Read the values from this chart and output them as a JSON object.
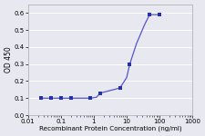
{
  "x": [
    0.025,
    0.05,
    0.1,
    0.2,
    0.8,
    1.6,
    6.25,
    12.5,
    50,
    100
  ],
  "y": [
    0.1,
    0.1,
    0.1,
    0.1,
    0.1,
    0.13,
    0.16,
    0.3,
    0.59,
    0.59
  ],
  "line_color": "#5555cc",
  "marker_color": "#2233aa",
  "xlabel": "Recombinant Protein Concentration (ng/ml)",
  "ylabel": "OD 450",
  "ylim": [
    0,
    0.65
  ],
  "yticks": [
    0,
    0.1,
    0.2,
    0.3,
    0.4,
    0.5,
    0.6
  ],
  "background_color": "#e8e8f0",
  "plot_bg": "#e8e8f0",
  "grid_color": "#ffffff",
  "xlabel_fontsize": 5.2,
  "ylabel_fontsize": 5.5,
  "tick_fontsize": 5.0,
  "smooth_x": [
    0.025,
    0.03,
    0.04,
    0.05,
    0.07,
    0.1,
    0.15,
    0.2,
    0.3,
    0.5,
    0.8,
    1.2,
    1.6,
    2.5,
    4.0,
    6.25,
    10,
    12.5,
    20,
    35,
    50,
    75,
    100
  ],
  "smooth_y": [
    0.1,
    0.1,
    0.1,
    0.1,
    0.1,
    0.1,
    0.1,
    0.1,
    0.1,
    0.1,
    0.1,
    0.105,
    0.13,
    0.14,
    0.15,
    0.16,
    0.22,
    0.3,
    0.42,
    0.53,
    0.59,
    0.59,
    0.59
  ]
}
